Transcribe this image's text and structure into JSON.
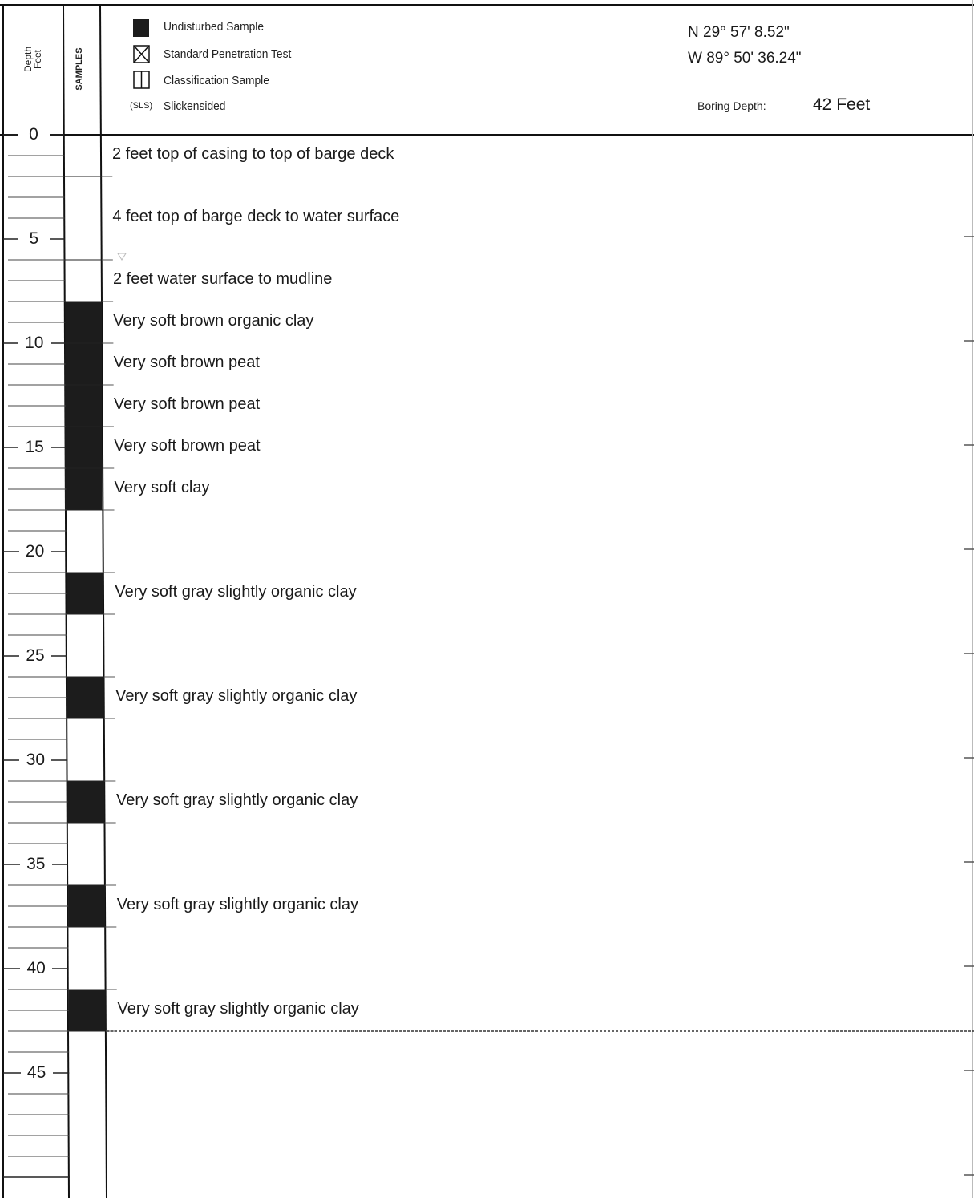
{
  "header": {
    "depth_label_line1": "Depth",
    "depth_label_line2": "Feet",
    "samples_label": "SAMPLES",
    "legend": [
      {
        "symbol": "filled",
        "label": "Undisturbed Sample"
      },
      {
        "symbol": "x-box",
        "label": "Standard Penetration Test"
      },
      {
        "symbol": "split-box",
        "label": "Classification Sample"
      },
      {
        "symbol": "abbr",
        "abbr": "(SLS)",
        "label": "Slickensided"
      }
    ],
    "latitude": "N 29° 57' 8.52\"",
    "longitude": "W 89° 50' 36.24\"",
    "boring_depth_label": "Boring Depth:",
    "boring_depth_value": "42 Feet"
  },
  "depth_ticks": [
    "0",
    "5",
    "10",
    "15",
    "20",
    "25",
    "30",
    "35",
    "40",
    "45"
  ],
  "layers": [
    {
      "top": 0,
      "bottom": 2,
      "description": "2 feet top of casing to top of barge deck"
    },
    {
      "top": 2,
      "bottom": 6,
      "description": "4 feet top of barge deck to water surface"
    },
    {
      "top": 6,
      "bottom": 8,
      "description": "2 feet water surface to mudline"
    },
    {
      "top": 8,
      "bottom": 10,
      "description": "Very soft brown organic clay"
    },
    {
      "top": 10,
      "bottom": 12,
      "description": "Very soft brown peat"
    },
    {
      "top": 12,
      "bottom": 14,
      "description": "Very soft brown peat"
    },
    {
      "top": 14,
      "bottom": 16,
      "description": "Very soft brown peat"
    },
    {
      "top": 16,
      "bottom": 18,
      "description": "Very soft clay"
    },
    {
      "top": 21,
      "bottom": 23,
      "description": "Very soft gray slightly organic clay"
    },
    {
      "top": 26,
      "bottom": 28,
      "description": "Very soft gray slightly organic clay"
    },
    {
      "top": 31,
      "bottom": 33,
      "description": "Very soft gray slightly organic clay"
    },
    {
      "top": 36,
      "bottom": 38,
      "description": "Very soft gray slightly organic clay"
    },
    {
      "top": 41,
      "bottom": 43,
      "description": "Very soft gray slightly organic clay"
    }
  ],
  "samples": [
    {
      "top": 8,
      "bottom": 18,
      "type": "undisturbed"
    },
    {
      "top": 21,
      "bottom": 23,
      "type": "undisturbed"
    },
    {
      "top": 26,
      "bottom": 28,
      "type": "undisturbed"
    },
    {
      "top": 31,
      "bottom": 33,
      "type": "undisturbed"
    },
    {
      "top": 36,
      "bottom": 38,
      "type": "undisturbed"
    },
    {
      "top": 41,
      "bottom": 43,
      "type": "undisturbed"
    }
  ],
  "water_level_depth": 6,
  "boring_end_depth": 42
}
